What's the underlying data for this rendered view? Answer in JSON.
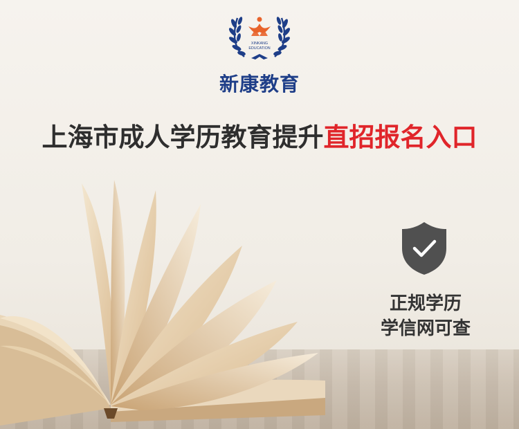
{
  "logo": {
    "icon": "laurel-wreath-logo-icon",
    "text_line1": "XINKANG",
    "text_line2": "EDUCATION",
    "wreath_color": "#1e3e88",
    "mark_color": "#e8632b"
  },
  "brand": {
    "name": "新康教育",
    "color": "#1e3e88"
  },
  "headline": {
    "part1": "上海市成人学历教育提升",
    "part2": "直招报名入口",
    "part2_color": "#e0252a"
  },
  "badge": {
    "icon": "shield-check-icon",
    "line1": "正规学历",
    "line2": "学信网可查"
  },
  "image": {
    "subject": "open-book-icon"
  }
}
